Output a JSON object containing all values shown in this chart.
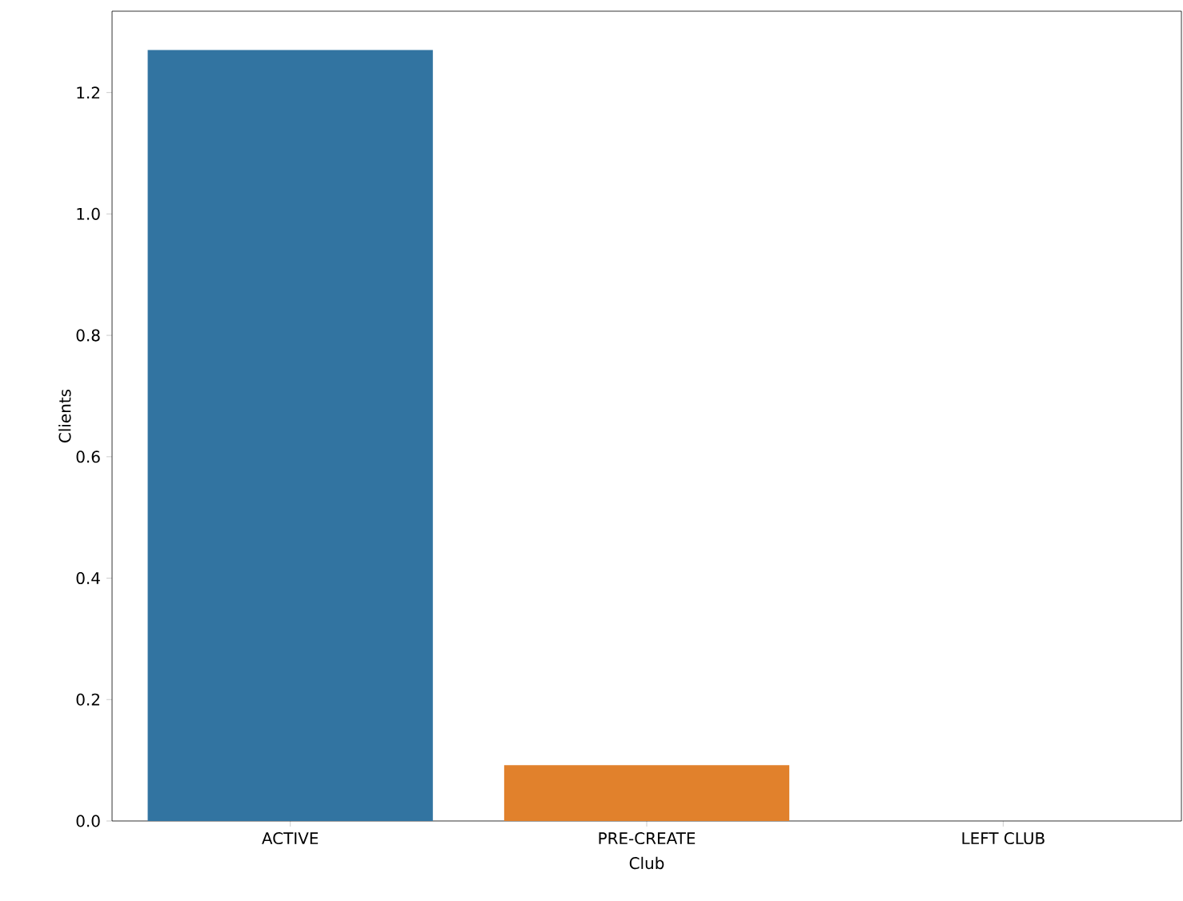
{
  "chart_data": {
    "type": "bar",
    "xlabel": "Club",
    "ylabel": "Clients",
    "categories": [
      "ACTIVE",
      "PRE-CREATE",
      "LEFT CLUB"
    ],
    "values": [
      1.27,
      0.092,
      0
    ],
    "colors": [
      "#3274a1",
      "#e1812c",
      "#3a923a"
    ],
    "ylim": [
      0,
      1.334
    ],
    "yticks": [
      {
        "value": 0,
        "label": "0.0"
      },
      {
        "value": 0.2,
        "label": "0.2"
      },
      {
        "value": 0.4,
        "label": "0.4"
      },
      {
        "value": 0.6,
        "label": "0.6"
      },
      {
        "value": 0.8,
        "label": "0.8"
      },
      {
        "value": 1.0,
        "label": "1.0"
      },
      {
        "value": 1.2,
        "label": "1.2"
      }
    ],
    "grid": false
  }
}
